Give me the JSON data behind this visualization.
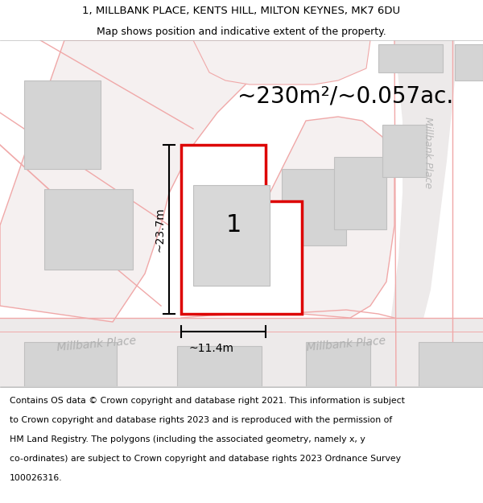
{
  "title_line1": "1, MILLBANK PLACE, KENTS HILL, MILTON KEYNES, MK7 6DU",
  "title_line2": "Map shows position and indicative extent of the property.",
  "area_text": "~230m²/~0.057ac.",
  "width_label": "~11.4m",
  "height_label": "~23.7m",
  "plot_number": "1",
  "road_label_bottom_left": "Millbank Place",
  "road_label_bottom_right": "Millbank Place",
  "road_label_vertical": "Millbank Place",
  "footer_lines": [
    "Contains OS data © Crown copyright and database right 2021. This information is subject",
    "to Crown copyright and database rights 2023 and is reproduced with the permission of",
    "HM Land Registry. The polygons (including the associated geometry, namely x, y",
    "co-ordinates) are subject to Crown copyright and database rights 2023 Ordnance Survey",
    "100026316."
  ],
  "map_bg": "#f2f0f0",
  "plot_fill": "#ffffff",
  "plot_edge": "#dd0000",
  "road_line_color": "#f0a8a8",
  "building_fill": "#d4d4d4",
  "building_edge": "#c0c0c0",
  "title_fontsize": 9.5,
  "subtitle_fontsize": 9.0,
  "footer_fontsize": 7.8,
  "area_fontsize": 20,
  "plot_num_fontsize": 22,
  "dim_fontsize": 10,
  "road_fontsize": 10,
  "road_vert_fontsize": 9
}
